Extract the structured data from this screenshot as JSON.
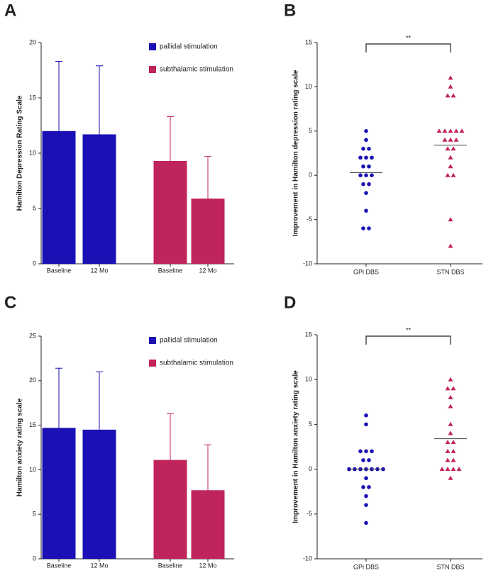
{
  "chart_data": [
    {
      "type": "bar",
      "panel": "A",
      "y_label": "Hamilton Depression Rating Scale",
      "categories": [
        "Baseline",
        "12 Mo",
        "Baseline",
        "12 Mo"
      ],
      "series": [
        {
          "name": "pallidal stimulation",
          "color": "#1a10b4",
          "values": [
            12.0,
            11.7,
            null,
            null
          ],
          "errors": [
            6.3,
            6.2,
            null,
            null
          ]
        },
        {
          "name": "subthalamic stimulation",
          "color": "#c0245c",
          "values": [
            null,
            null,
            9.3,
            5.9
          ],
          "errors": [
            null,
            null,
            4.0,
            3.8
          ]
        }
      ],
      "ylim": [
        0,
        20
      ],
      "yticks": [
        0,
        5,
        10,
        15,
        20
      ],
      "legend": "upper right"
    },
    {
      "type": "strip",
      "panel": "B",
      "y_label": "Improvement in Hamilton depression rating scale",
      "categories": [
        "GPi DBS",
        "STN DBS"
      ],
      "series": [
        {
          "color": "#1a10b4",
          "marker": "circle",
          "values": [
            5,
            4,
            3,
            3,
            2,
            2,
            2,
            1,
            1,
            0,
            0,
            0,
            -1,
            -1,
            -2,
            -4,
            -6,
            -6
          ],
          "mean": 0.3
        },
        {
          "color": "#c0245c",
          "marker": "triangle",
          "values": [
            11,
            10,
            9,
            9,
            5,
            5,
            5,
            5,
            5,
            4,
            4,
            4,
            3,
            3,
            2,
            1,
            0,
            0,
            -5,
            -8
          ],
          "mean": 3.4
        }
      ],
      "annotation": "**",
      "ylim": [
        -10,
        15
      ],
      "yticks": [
        -10,
        -5,
        0,
        5,
        10,
        15
      ]
    },
    {
      "type": "bar",
      "panel": "C",
      "y_label": "Hamilton anxiety rating scale",
      "categories": [
        "Baseline",
        "12 Mo",
        "Baseline",
        "12 Mo"
      ],
      "series": [
        {
          "name": "pallidal stimulation",
          "color": "#1a10b4",
          "values": [
            14.7,
            14.5,
            null,
            null
          ],
          "errors": [
            6.7,
            6.5,
            null,
            null
          ]
        },
        {
          "name": "subthalamic stimulation",
          "color": "#c0245c",
          "values": [
            null,
            null,
            11.1,
            7.7
          ],
          "errors": [
            null,
            null,
            5.2,
            5.1
          ]
        }
      ],
      "ylim": [
        0,
        25
      ],
      "yticks": [
        0,
        5,
        10,
        15,
        20,
        25
      ],
      "legend": "upper right"
    },
    {
      "type": "strip",
      "panel": "D",
      "y_label": "Improvement in Hamilton anxiety rating scale",
      "categories": [
        "GPi DBS",
        "STN DBS"
      ],
      "series": [
        {
          "color": "#1a10b4",
          "marker": "circle",
          "values": [
            6,
            5,
            2,
            2,
            2,
            1,
            1,
            0,
            0,
            0,
            0,
            0,
            0,
            0,
            -1,
            -2,
            -2,
            -3,
            -4,
            -6
          ],
          "mean": 0
        },
        {
          "color": "#c0245c",
          "marker": "triangle",
          "values": [
            10,
            9,
            9,
            8,
            7,
            5,
            4,
            3,
            3,
            2,
            2,
            1,
            1,
            0,
            0,
            0,
            0,
            -1
          ],
          "mean": 3.4
        }
      ],
      "annotation": "**",
      "ylim": [
        -10,
        15
      ],
      "yticks": [
        -10,
        -5,
        0,
        5,
        10,
        15
      ]
    }
  ]
}
